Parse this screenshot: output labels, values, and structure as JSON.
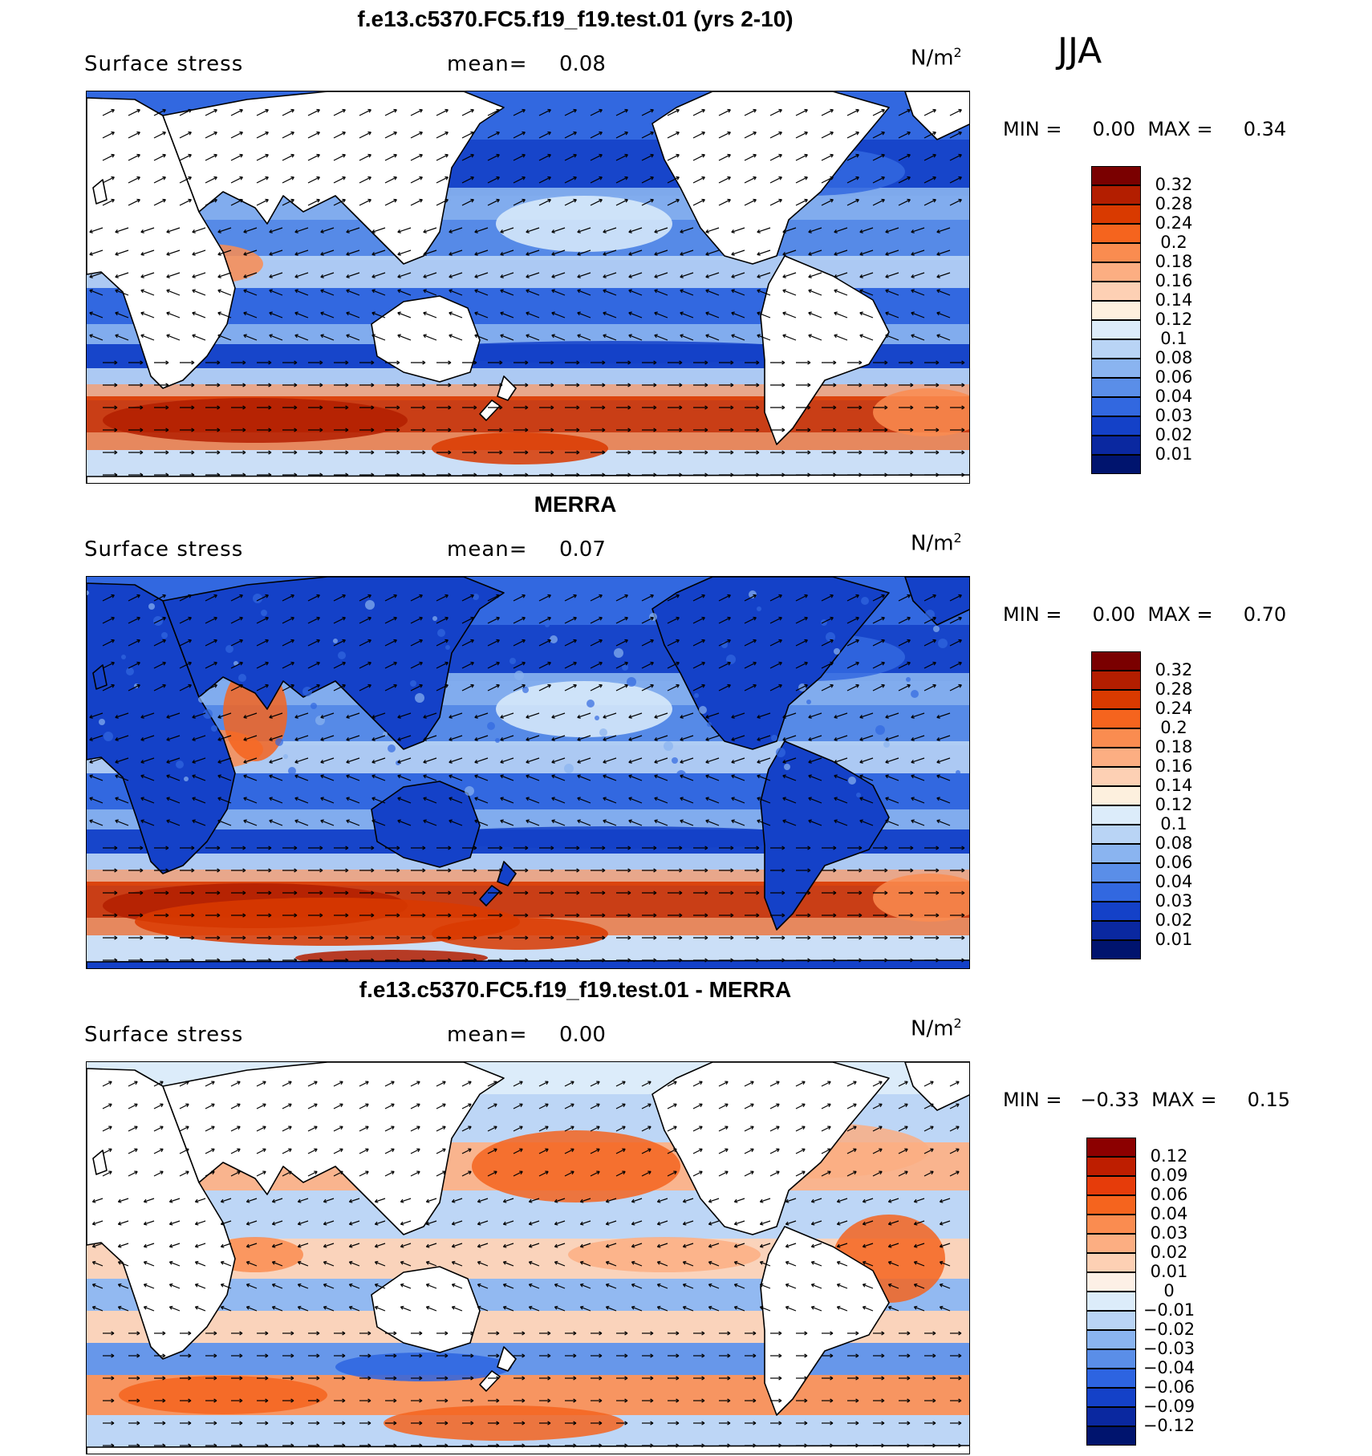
{
  "season": "JJA",
  "panels": [
    {
      "title": "f.e13.c5370.FC5.f19_f19.test.01 (yrs 2-10)",
      "field": "Surface stress",
      "mean_label": "mean=",
      "mean_value": "0.08",
      "units_base": "N/m",
      "units_exp": "2",
      "minmax": "MIN =     0.00  MAX =     0.34",
      "kind": "abs",
      "land_white": true,
      "colorbar": {
        "labels": [
          "0.32",
          "0.28",
          "0.24",
          "0.2",
          "0.18",
          "0.16",
          "0.14",
          "0.12",
          "0.1",
          "0.08",
          "0.06",
          "0.04",
          "0.03",
          "0.02",
          "0.01"
        ],
        "colors": [
          "#7a0000",
          "#b31e00",
          "#d93a00",
          "#f5641e",
          "#fa8c50",
          "#fcae82",
          "#fdd0b4",
          "#fdf0de",
          "#dcecfa",
          "#b9d4f5",
          "#8ab4f0",
          "#5a8ee8",
          "#3268e0",
          "#1441c8",
          "#0a28a0",
          "#00146e"
        ]
      }
    },
    {
      "title": "MERRA",
      "field": "Surface stress",
      "mean_label": "mean=",
      "mean_value": "0.07",
      "units_base": "N/m",
      "units_exp": "2",
      "minmax": "MIN =     0.00  MAX =     0.70",
      "kind": "abs",
      "land_white": false,
      "colorbar": {
        "labels": [
          "0.32",
          "0.28",
          "0.24",
          "0.2",
          "0.18",
          "0.16",
          "0.14",
          "0.12",
          "0.1",
          "0.08",
          "0.06",
          "0.04",
          "0.03",
          "0.02",
          "0.01"
        ],
        "colors": [
          "#7a0000",
          "#b31e00",
          "#d93a00",
          "#f5641e",
          "#fa8c50",
          "#fcae82",
          "#fdd0b4",
          "#fdf0de",
          "#dcecfa",
          "#b9d4f5",
          "#8ab4f0",
          "#5a8ee8",
          "#3268e0",
          "#1441c8",
          "#0a28a0",
          "#00146e"
        ]
      }
    },
    {
      "title": "f.e13.c5370.FC5.f19_f19.test.01 - MERRA",
      "field": "Surface stress",
      "mean_label": "mean=",
      "mean_value": "0.00",
      "units_base": "N/m",
      "units_exp": "2",
      "minmax": "MIN =   −0.33  MAX =     0.15",
      "kind": "diff",
      "land_white": true,
      "colorbar": {
        "labels": [
          "0.12",
          "0.09",
          "0.06",
          "0.04",
          "0.03",
          "0.02",
          "0.01",
          "0",
          "−0.01",
          "−0.02",
          "−0.03",
          "−0.04",
          "−0.06",
          "−0.09",
          "−0.12"
        ],
        "colors": [
          "#8c0000",
          "#be1e00",
          "#e63c0a",
          "#f5641e",
          "#fa8c50",
          "#fcae82",
          "#fdd0b4",
          "#fdf0e6",
          "#dcecfa",
          "#b9d4f5",
          "#8ab4f0",
          "#5a8ee8",
          "#2d64e1",
          "#1441c8",
          "#0a28a0",
          "#00146e"
        ]
      }
    }
  ]
}
